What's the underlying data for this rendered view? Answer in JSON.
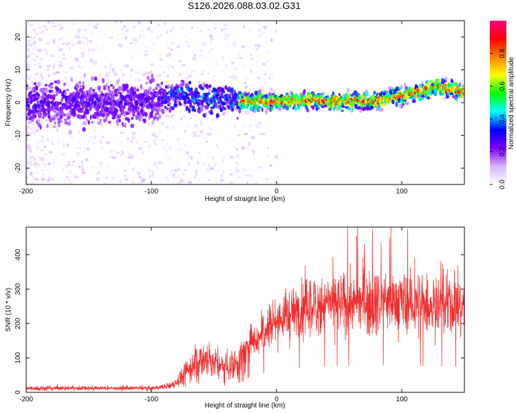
{
  "page": {
    "title": "S126.2026.088.03.02.G31"
  },
  "chart_data": [
    {
      "type": "heatmap",
      "name": "spectrogram",
      "xlabel": "Height of straight line (km)",
      "ylabel": "Frequency (Hz)",
      "xlim": [
        -200,
        150
      ],
      "ylim": [
        -25,
        25
      ],
      "xticks": [
        -200,
        -100,
        0,
        100
      ],
      "yticks": [
        -20,
        -10,
        0,
        10,
        20
      ],
      "grid": false,
      "colorbar": {
        "label": "Normalized spectral amplitude",
        "range": [
          0,
          1
        ],
        "ticks": [
          0.0,
          0.2,
          0.4,
          0.6,
          0.8
        ],
        "colormap": [
          "#ffffff",
          "#d9b3ff",
          "#7d00ff",
          "#0000ff",
          "#00ffff",
          "#00ff00",
          "#ffff00",
          "#ff8000",
          "#ff0000",
          "#ff0080"
        ]
      },
      "ridge": {
        "x": [
          -200,
          -150,
          -100,
          -80,
          -60,
          -40,
          -20,
          0,
          20,
          40,
          60,
          80,
          100,
          120,
          130,
          150
        ],
        "y": [
          0,
          0,
          0,
          3,
          1,
          0.5,
          0.5,
          0.5,
          0.5,
          0.5,
          0.5,
          0.5,
          2,
          4,
          5,
          3
        ]
      }
    },
    {
      "type": "line",
      "name": "snr",
      "xlabel": "Height of straight line (km)",
      "ylabel": "SNR (10 * v/v)",
      "xlim": [
        -200,
        150
      ],
      "ylim": [
        0,
        480
      ],
      "xticks": [
        -200,
        -100,
        0,
        100
      ],
      "yticks": [
        0,
        100,
        200,
        300,
        400
      ],
      "grid": false,
      "color": "#ee3030",
      "envelope": {
        "x": [
          -200,
          -150,
          -100,
          -85,
          -75,
          -65,
          -55,
          -45,
          -35,
          -25,
          -20,
          -15,
          -10,
          -5,
          0,
          10,
          20,
          30,
          40,
          60,
          80,
          100,
          120,
          140,
          150
        ],
        "y": [
          12,
          12,
          12,
          18,
          45,
          85,
          100,
          75,
          80,
          110,
          170,
          150,
          190,
          200,
          210,
          225,
          240,
          250,
          255,
          260,
          265,
          260,
          255,
          250,
          245
        ]
      }
    }
  ]
}
